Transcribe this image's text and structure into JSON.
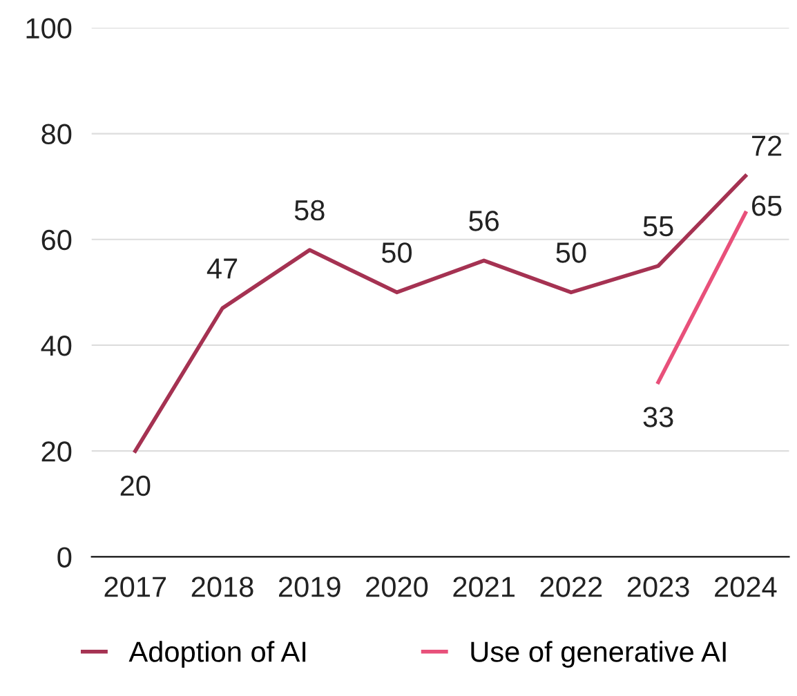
{
  "chart_data": {
    "type": "line",
    "categories": [
      "2017",
      "2018",
      "2019",
      "2020",
      "2021",
      "2022",
      "2023",
      "2024"
    ],
    "series": [
      {
        "name": "Adoption of AI",
        "color": "#a53252",
        "values": [
          20,
          47,
          58,
          50,
          56,
          50,
          55,
          72
        ]
      },
      {
        "name": "Use of generative AI",
        "color": "#e8507a",
        "values": [
          null,
          null,
          null,
          null,
          null,
          null,
          33,
          65
        ]
      }
    ],
    "ylim": [
      0,
      100
    ],
    "yticks": [
      0,
      20,
      40,
      60,
      80,
      100
    ],
    "grid": "y",
    "legend": "bottom",
    "data_labels": true,
    "marker": "none",
    "line_style": "solid"
  }
}
